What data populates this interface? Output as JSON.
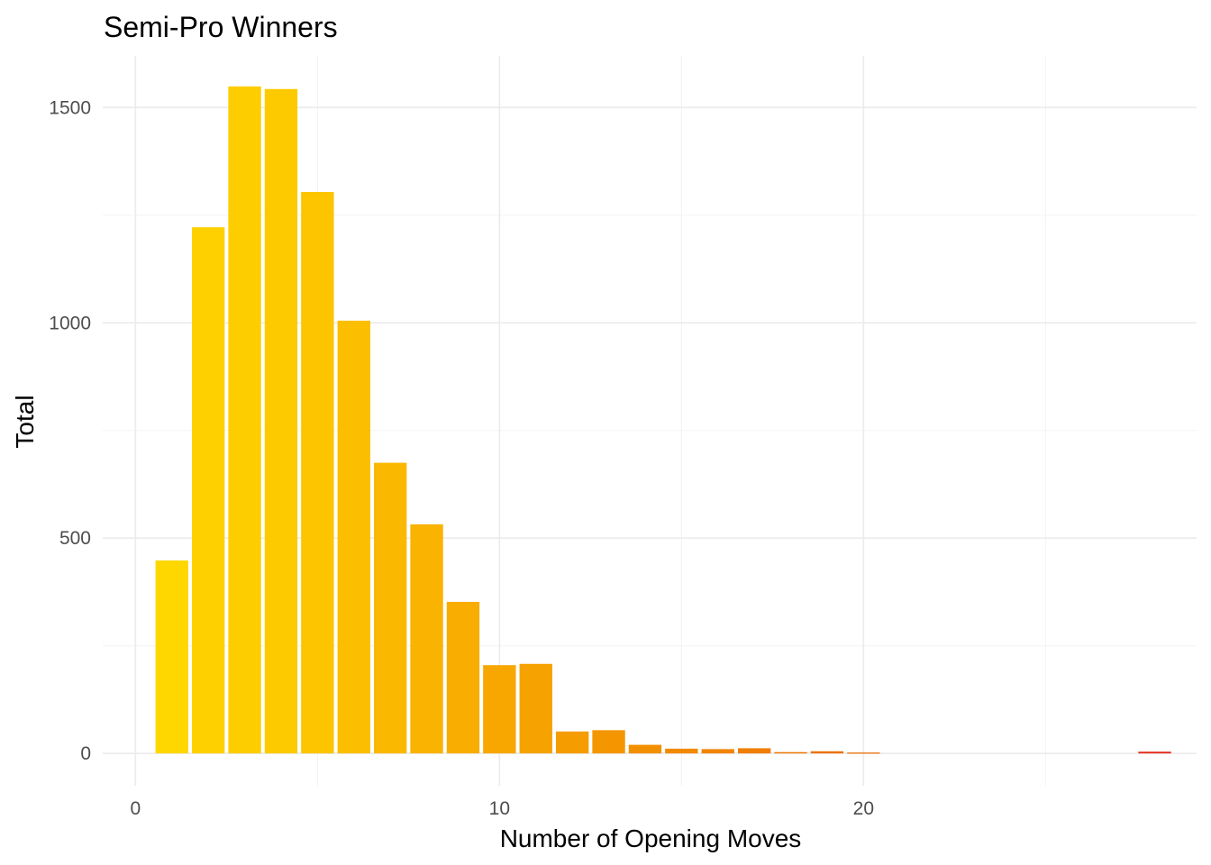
{
  "chart_data": {
    "type": "bar",
    "title": "Semi-Pro Winners",
    "xlabel": "Number of Opening Moves",
    "ylabel": "Total",
    "x": [
      1,
      2,
      3,
      4,
      5,
      6,
      7,
      8,
      9,
      10,
      11,
      12,
      13,
      14,
      15,
      16,
      17,
      18,
      19,
      20,
      28
    ],
    "values": [
      448,
      1222,
      1549,
      1543,
      1304,
      1005,
      675,
      532,
      352,
      205,
      208,
      51,
      54,
      20,
      11,
      10,
      12,
      3,
      5,
      2,
      4
    ],
    "bar_colors": [
      "#ffd700",
      "#fed000",
      "#fdcd00",
      "#fdca00",
      "#fcc500",
      "#fbbe00",
      "#fab800",
      "#f9b300",
      "#f8ad00",
      "#f7a700",
      "#f6a200",
      "#f59c00",
      "#f49600",
      "#f39000",
      "#f28a00",
      "#f18400",
      "#f07e00",
      "#ef7800",
      "#ee7200",
      "#ed6c00",
      "#e52b1b"
    ],
    "xlim": [
      -0.9,
      29.15
    ],
    "ylim": [
      -75,
      1620
    ],
    "x_major_ticks": [
      0,
      10,
      20
    ],
    "x_minor_ticks": [
      5,
      15,
      25
    ],
    "y_major_ticks": [
      0,
      500,
      1000,
      1500
    ],
    "y_minor_ticks": [
      250,
      750,
      1250
    ],
    "grid": true,
    "legend": "none"
  },
  "style": {
    "grid_color": "#ebebeb",
    "background": "#ffffff"
  }
}
